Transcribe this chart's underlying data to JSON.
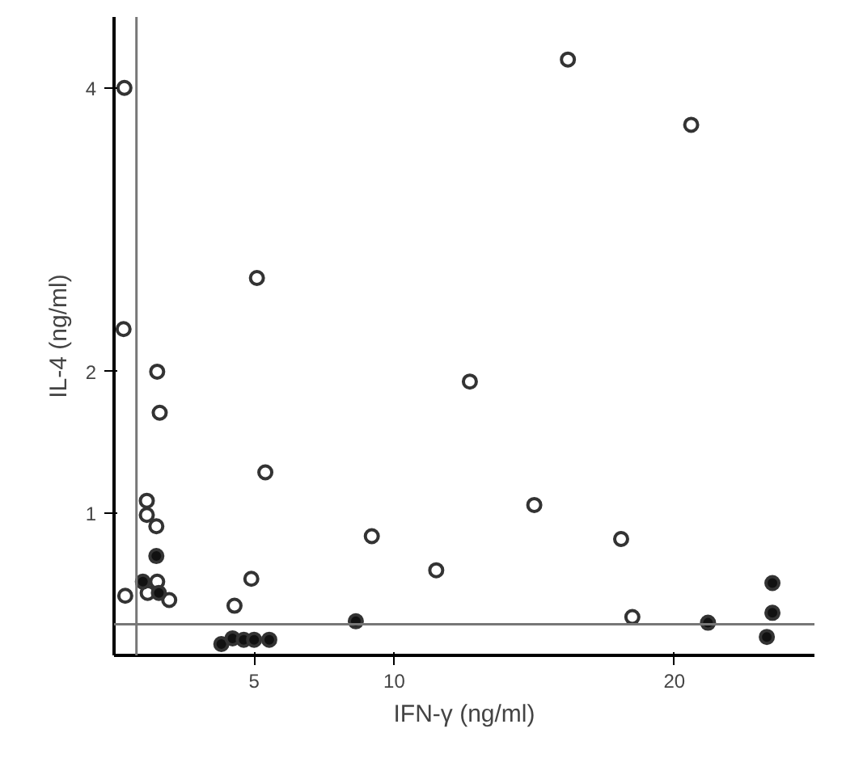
{
  "chart_data": {
    "type": "scatter",
    "xlabel": "IFN-γ (ng/ml)",
    "ylabel": "IL-4 (ng/ml)",
    "xlim": [
      0,
      25
    ],
    "ylim": [
      0,
      4.5
    ],
    "xticks": [
      5,
      10,
      20
    ],
    "yticks": [
      1,
      2,
      4
    ],
    "grid": false,
    "marker": "circle",
    "series": [
      {
        "color": "#ffffff",
        "x": [
          0.37,
          0.34,
          1.54,
          1.63,
          1.17,
          1.17,
          1.51,
          1.54,
          1.2,
          1.97,
          0.4,
          4.3,
          4.9,
          5.1,
          5.4,
          9.2,
          16.2,
          20.6,
          12.7,
          15,
          11.5,
          18.1,
          18.5
        ],
        "values": [
          4.0,
          2.3,
          2.0,
          1.71,
          1.09,
          0.99,
          0.91,
          0.52,
          0.44,
          0.39,
          0.42,
          0.35,
          0.54,
          2.66,
          1.29,
          0.84,
          4.2,
          3.74,
          1.93,
          1.06,
          0.6,
          0.82,
          0.27
        ]
      },
      {
        "color": "#111111",
        "x": [
          1.51,
          1.03,
          1.6,
          3.83,
          4.23,
          4.63,
          5.0,
          5.54,
          8.63,
          21.2,
          23.5,
          23.5,
          23.3
        ],
        "values": [
          0.7,
          0.52,
          0.44,
          0.08,
          0.12,
          0.11,
          0.11,
          0.11,
          0.24,
          0.23,
          0.51,
          0.3,
          0.13
        ]
      }
    ],
    "ref_lines": [
      {
        "axis": "x",
        "value": 0.8,
        "color": "#777777"
      },
      {
        "axis": "y",
        "value": 0.22,
        "color": "#777777"
      }
    ]
  }
}
